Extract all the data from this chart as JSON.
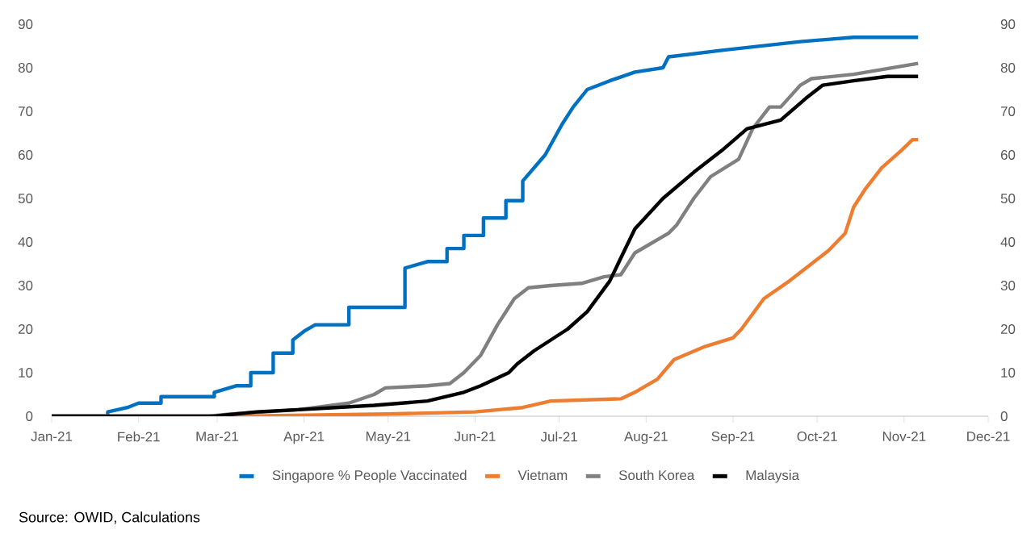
{
  "chart_data": {
    "type": "line",
    "xlim": [
      "2021-01-01",
      "2021-12-01"
    ],
    "xticks": [
      {
        "value": "2021-01-01",
        "label": "Jan-21"
      },
      {
        "value": "2021-02-01",
        "label": "Feb-21"
      },
      {
        "value": "2021-03-01",
        "label": "Mar-21"
      },
      {
        "value": "2021-04-01",
        "label": "Apr-21"
      },
      {
        "value": "2021-05-01",
        "label": "May-21"
      },
      {
        "value": "2021-06-01",
        "label": "Jun-21"
      },
      {
        "value": "2021-07-01",
        "label": "Jul-21"
      },
      {
        "value": "2021-08-01",
        "label": "Aug-21"
      },
      {
        "value": "2021-09-01",
        "label": "Sep-21"
      },
      {
        "value": "2021-10-01",
        "label": "Oct-21"
      },
      {
        "value": "2021-11-01",
        "label": "Nov-21"
      },
      {
        "value": "2021-12-01",
        "label": "Dec-21"
      }
    ],
    "ylim": [
      0,
      90
    ],
    "yticks": [
      0,
      10,
      20,
      30,
      40,
      50,
      60,
      70,
      80,
      90
    ],
    "y2lim": [
      0,
      90
    ],
    "y2ticks": [
      0,
      10,
      20,
      30,
      40,
      50,
      60,
      70,
      80,
      90
    ],
    "grid": false,
    "legend": "bottom",
    "marker": "none",
    "line_style": "solid",
    "series": [
      {
        "name": "Singapore % People Vaccinated",
        "color": "#0070c0",
        "x": [
          "2021-01-01",
          "2021-01-21",
          "2021-01-21",
          "2021-01-28",
          "2021-02-01",
          "2021-02-09",
          "2021-02-09",
          "2021-02-28",
          "2021-02-28",
          "2021-03-08",
          "2021-03-13",
          "2021-03-13",
          "2021-03-21",
          "2021-03-21",
          "2021-03-28",
          "2021-03-28",
          "2021-04-01",
          "2021-04-05",
          "2021-04-17",
          "2021-04-17",
          "2021-05-07",
          "2021-05-07",
          "2021-05-15",
          "2021-05-22",
          "2021-05-22",
          "2021-05-28",
          "2021-05-28",
          "2021-06-04",
          "2021-06-04",
          "2021-06-12",
          "2021-06-12",
          "2021-06-18",
          "2021-06-18",
          "2021-06-26",
          "2021-07-02",
          "2021-07-06",
          "2021-07-11",
          "2021-07-19",
          "2021-07-28",
          "2021-08-07",
          "2021-08-09",
          "2021-08-28",
          "2021-09-25",
          "2021-10-14",
          "2021-11-06"
        ],
        "values": [
          0,
          0,
          1,
          2,
          3,
          3,
          4.5,
          4.5,
          5.5,
          7,
          7,
          10,
          10,
          14.5,
          14.5,
          17.5,
          19.5,
          21,
          21,
          25,
          25,
          34,
          35.5,
          35.5,
          38.5,
          38.5,
          41.5,
          41.5,
          45.5,
          45.5,
          49.5,
          49.5,
          54,
          60,
          67,
          71,
          75,
          77,
          79,
          80,
          82.5,
          84,
          86,
          87,
          87
        ]
      },
      {
        "name": "Vietnam",
        "color": "#ed7d31",
        "x": [
          "2021-01-01",
          "2021-03-08",
          "2021-05-01",
          "2021-06-01",
          "2021-06-18",
          "2021-06-28",
          "2021-07-23",
          "2021-07-28",
          "2021-08-05",
          "2021-08-11",
          "2021-08-22",
          "2021-09-01",
          "2021-09-04",
          "2021-09-12",
          "2021-09-21",
          "2021-09-29",
          "2021-10-05",
          "2021-10-11",
          "2021-10-14",
          "2021-10-18",
          "2021-10-24",
          "2021-10-31",
          "2021-11-04",
          "2021-11-06"
        ],
        "values": [
          0,
          0,
          0.5,
          1,
          2,
          3.5,
          4,
          5.5,
          8.5,
          13,
          16,
          18,
          20,
          27,
          31,
          35,
          38,
          42,
          48,
          52,
          57,
          61,
          63.5,
          63.5
        ]
      },
      {
        "name": "South Korea",
        "color": "#808080",
        "x": [
          "2021-01-01",
          "2021-02-26",
          "2021-03-06",
          "2021-03-30",
          "2021-04-17",
          "2021-04-26",
          "2021-04-30",
          "2021-05-15",
          "2021-05-23",
          "2021-05-28",
          "2021-06-03",
          "2021-06-09",
          "2021-06-15",
          "2021-06-20",
          "2021-06-28",
          "2021-07-09",
          "2021-07-17",
          "2021-07-23",
          "2021-07-28",
          "2021-08-09",
          "2021-08-12",
          "2021-08-18",
          "2021-08-24",
          "2021-09-03",
          "2021-09-08",
          "2021-09-14",
          "2021-09-18",
          "2021-09-25",
          "2021-09-29",
          "2021-10-14",
          "2021-11-06"
        ],
        "values": [
          0,
          0,
          0.5,
          1.5,
          3,
          5,
          6.5,
          7,
          7.5,
          10,
          14,
          21,
          27,
          29.5,
          30,
          30.5,
          32,
          32.5,
          37.5,
          42,
          44,
          50,
          55,
          59,
          66,
          71,
          71,
          76,
          77.5,
          78.5,
          81
        ]
      },
      {
        "name": "Malaysia",
        "color": "#000000",
        "x": [
          "2021-01-01",
          "2021-02-28",
          "2021-03-15",
          "2021-03-30",
          "2021-04-26",
          "2021-05-15",
          "2021-05-28",
          "2021-06-03",
          "2021-06-13",
          "2021-06-16",
          "2021-06-22",
          "2021-07-04",
          "2021-07-11",
          "2021-07-19",
          "2021-07-28",
          "2021-08-07",
          "2021-08-18",
          "2021-08-28",
          "2021-09-06",
          "2021-09-18",
          "2021-09-27",
          "2021-10-03",
          "2021-10-14",
          "2021-10-26",
          "2021-11-06"
        ],
        "values": [
          0,
          0,
          1,
          1.5,
          2.5,
          3.5,
          5.5,
          7,
          10,
          12,
          15,
          20,
          24,
          31,
          43,
          50,
          56,
          61,
          66,
          68,
          73,
          76,
          77,
          78,
          78
        ]
      }
    ],
    "annotations": [
      "Source: OWID, Calculations"
    ]
  }
}
